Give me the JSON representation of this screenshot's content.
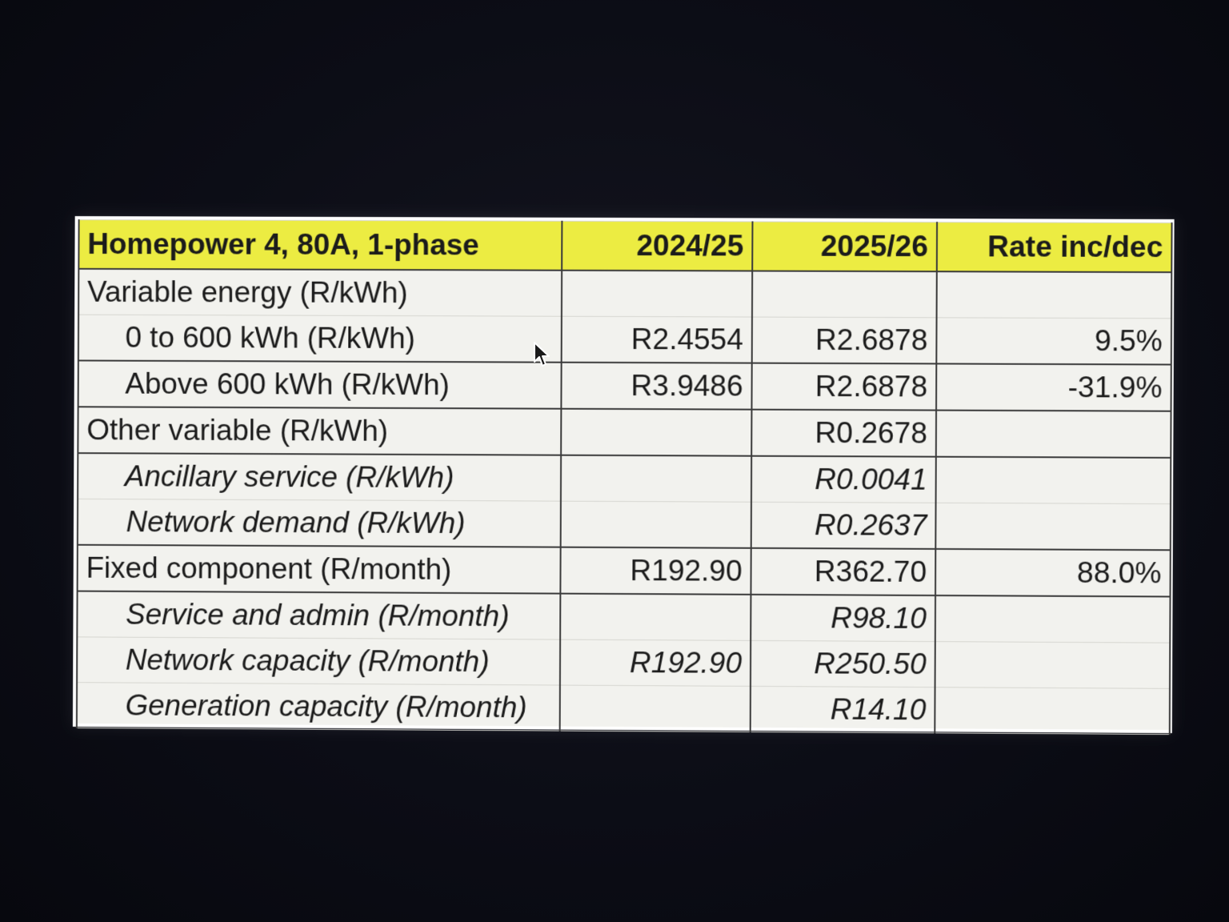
{
  "table": {
    "header": {
      "label": "Homepower 4, 80A, 1-phase",
      "col_2024": "2024/25",
      "col_2025": "2025/26",
      "col_rate": "Rate inc/dec"
    },
    "rows": [
      {
        "label": "Variable energy (R/kWh)",
        "v2024": "",
        "v2025": "",
        "rate": ""
      },
      {
        "label": "0 to 600 kWh (R/kWh)",
        "v2024": "R2.4554",
        "v2025": "R2.6878",
        "rate": "9.5%"
      },
      {
        "label": "Above 600 kWh (R/kWh)",
        "v2024": "R3.9486",
        "v2025": "R2.6878",
        "rate": "-31.9%"
      },
      {
        "label": "Other variable (R/kWh)",
        "v2024": "",
        "v2025": "R0.2678",
        "rate": ""
      },
      {
        "label": "Ancillary service (R/kWh)",
        "v2024": "",
        "v2025": "R0.0041",
        "rate": ""
      },
      {
        "label": "Network demand (R/kWh)",
        "v2024": "",
        "v2025": "R0.2637",
        "rate": ""
      },
      {
        "label": "Fixed component (R/month)",
        "v2024": "R192.90",
        "v2025": "R362.70",
        "rate": "88.0%"
      },
      {
        "label": "Service and admin (R/month)",
        "v2024": "",
        "v2025": "R98.10",
        "rate": ""
      },
      {
        "label": "Network capacity (R/month)",
        "v2024": "R192.90",
        "v2025": "R250.50",
        "rate": ""
      },
      {
        "label": "Generation capacity (R/month)",
        "v2024": "",
        "v2025": "R14.10",
        "rate": ""
      }
    ]
  },
  "colors": {
    "header_fill": "#ecec42",
    "cell_fill": "#f2f2ee",
    "background": "#0a0b12"
  },
  "icons": {
    "cursor": "mouse-pointer-icon"
  }
}
